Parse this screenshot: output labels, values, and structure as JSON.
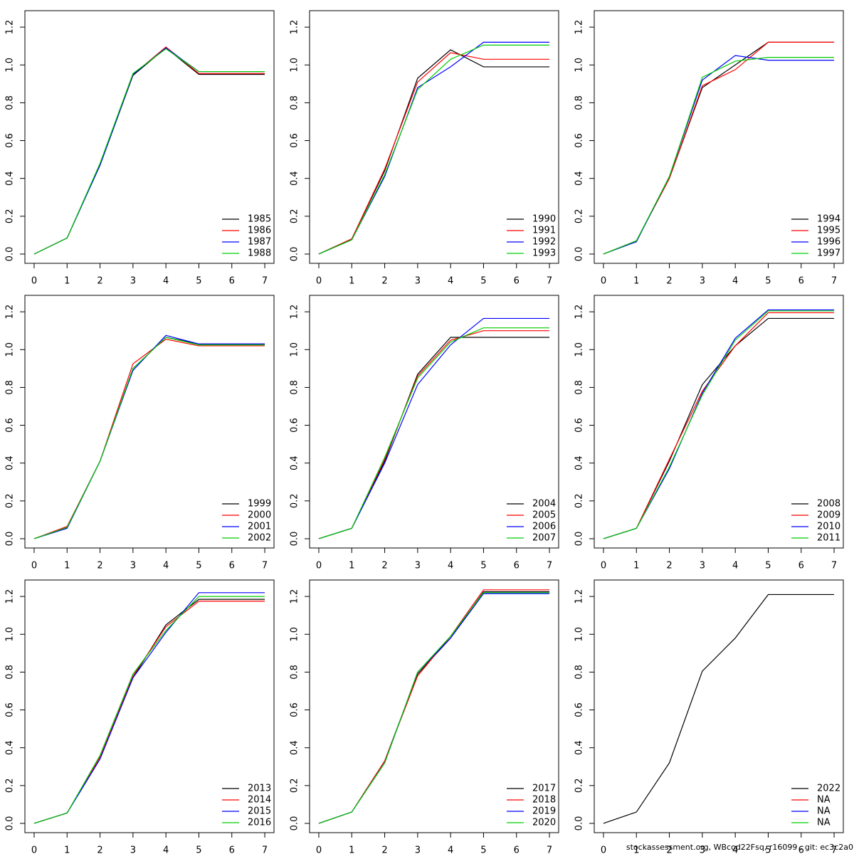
{
  "chart_data": [
    {
      "type": "line",
      "x": [
        0,
        1,
        2,
        3,
        4,
        5,
        6,
        7
      ],
      "xlim": [
        -0.28,
        7.28
      ],
      "xticks": [
        0,
        1,
        2,
        3,
        4,
        5,
        6,
        7
      ],
      "ylim": [
        -0.049,
        1.287
      ],
      "yticks": [
        {
          "value": 0,
          "label": "0.0"
        },
        0.2,
        0.4,
        0.6,
        0.8,
        {
          "value": 1,
          "label": "1.0"
        },
        1.2
      ],
      "legend": "bottomright",
      "series": [
        {
          "name": "1985",
          "color": "#000000",
          "values": [
            0,
            0.085,
            0.47,
            0.945,
            1.09,
            0.95,
            0.95,
            0.95
          ]
        },
        {
          "name": "1986",
          "color": "#ff0000",
          "values": [
            0,
            0.085,
            0.475,
            0.95,
            1.095,
            0.955,
            0.955,
            0.955
          ]
        },
        {
          "name": "1987",
          "color": "#0000ff",
          "values": [
            0,
            0.085,
            0.47,
            0.95,
            1.09,
            0.965,
            0.965,
            0.965
          ]
        },
        {
          "name": "1988",
          "color": "#00cd00",
          "values": [
            0,
            0.085,
            0.48,
            0.955,
            1.085,
            0.965,
            0.965,
            0.965
          ]
        }
      ]
    },
    {
      "type": "line",
      "x": [
        0,
        1,
        2,
        3,
        4,
        5,
        6,
        7
      ],
      "xlim": [
        -0.28,
        7.28
      ],
      "xticks": [
        0,
        1,
        2,
        3,
        4,
        5,
        6,
        7
      ],
      "ylim": [
        -0.049,
        1.287
      ],
      "yticks": [
        {
          "value": 0,
          "label": "0.0"
        },
        0.2,
        0.4,
        0.6,
        0.8,
        {
          "value": 1,
          "label": "1.0"
        },
        1.2
      ],
      "legend": "bottomright",
      "series": [
        {
          "name": "1990",
          "color": "#000000",
          "values": [
            0,
            0.08,
            0.44,
            0.93,
            1.08,
            0.99,
            0.99,
            0.99
          ]
        },
        {
          "name": "1991",
          "color": "#ff0000",
          "values": [
            0,
            0.08,
            0.45,
            0.91,
            1.065,
            1.03,
            1.03,
            1.03
          ]
        },
        {
          "name": "1992",
          "color": "#0000ff",
          "values": [
            0,
            0.075,
            0.41,
            0.88,
            0.99,
            1.12,
            1.12,
            1.12
          ]
        },
        {
          "name": "1993",
          "color": "#00cd00",
          "values": [
            0,
            0.075,
            0.42,
            0.87,
            1.03,
            1.105,
            1.105,
            1.105
          ]
        }
      ]
    },
    {
      "type": "line",
      "x": [
        0,
        1,
        2,
        3,
        4,
        5,
        6,
        7
      ],
      "xlim": [
        -0.28,
        7.28
      ],
      "xticks": [
        0,
        1,
        2,
        3,
        4,
        5,
        6,
        7
      ],
      "ylim": [
        -0.049,
        1.287
      ],
      "yticks": [
        {
          "value": 0,
          "label": "0.0"
        },
        0.2,
        0.4,
        0.6,
        0.8,
        {
          "value": 1,
          "label": "1.0"
        },
        1.2
      ],
      "legend": "bottomright",
      "series": [
        {
          "name": "1994",
          "color": "#000000",
          "values": [
            0,
            0.07,
            0.4,
            0.88,
            1.0,
            1.12,
            1.12,
            1.12
          ]
        },
        {
          "name": "1995",
          "color": "#ff0000",
          "values": [
            0,
            0.07,
            0.4,
            0.89,
            0.975,
            1.12,
            1.12,
            1.12
          ]
        },
        {
          "name": "1996",
          "color": "#0000ff",
          "values": [
            0,
            0.065,
            0.41,
            0.92,
            1.05,
            1.025,
            1.025,
            1.025
          ]
        },
        {
          "name": "1997",
          "color": "#00cd00",
          "values": [
            0,
            0.07,
            0.41,
            0.935,
            1.02,
            1.04,
            1.04,
            1.04
          ]
        }
      ]
    },
    {
      "type": "line",
      "x": [
        0,
        1,
        2,
        3,
        4,
        5,
        6,
        7
      ],
      "xlim": [
        -0.28,
        7.28
      ],
      "xticks": [
        0,
        1,
        2,
        3,
        4,
        5,
        6,
        7
      ],
      "ylim": [
        -0.049,
        1.287
      ],
      "yticks": [
        {
          "value": 0,
          "label": "0.0"
        },
        0.2,
        0.4,
        0.6,
        0.8,
        {
          "value": 1,
          "label": "1.0"
        },
        1.2
      ],
      "legend": "bottomright",
      "series": [
        {
          "name": "1999",
          "color": "#000000",
          "values": [
            0,
            0.06,
            0.41,
            0.9,
            1.065,
            1.03,
            1.03,
            1.03
          ]
        },
        {
          "name": "2000",
          "color": "#ff0000",
          "values": [
            0,
            0.065,
            0.41,
            0.925,
            1.055,
            1.02,
            1.02,
            1.02
          ]
        },
        {
          "name": "2001",
          "color": "#0000ff",
          "values": [
            0,
            0.055,
            0.41,
            0.89,
            1.075,
            1.03,
            1.03,
            1.03
          ]
        },
        {
          "name": "2002",
          "color": "#00cd00",
          "values": [
            0,
            0.06,
            0.41,
            0.9,
            1.065,
            1.025,
            1.025,
            1.025
          ]
        }
      ]
    },
    {
      "type": "line",
      "x": [
        0,
        1,
        2,
        3,
        4,
        5,
        6,
        7
      ],
      "xlim": [
        -0.28,
        7.28
      ],
      "xticks": [
        0,
        1,
        2,
        3,
        4,
        5,
        6,
        7
      ],
      "ylim": [
        -0.049,
        1.287
      ],
      "yticks": [
        {
          "value": 0,
          "label": "0.0"
        },
        0.2,
        0.4,
        0.6,
        0.8,
        {
          "value": 1,
          "label": "1.0"
        },
        1.2
      ],
      "legend": "bottomright",
      "series": [
        {
          "name": "2004",
          "color": "#000000",
          "values": [
            0,
            0.055,
            0.41,
            0.87,
            1.065,
            1.065,
            1.065,
            1.065
          ]
        },
        {
          "name": "2005",
          "color": "#ff0000",
          "values": [
            0,
            0.055,
            0.42,
            0.86,
            1.05,
            1.1,
            1.1,
            1.1
          ]
        },
        {
          "name": "2006",
          "color": "#0000ff",
          "values": [
            0,
            0.055,
            0.4,
            0.815,
            1.025,
            1.165,
            1.165,
            1.165
          ]
        },
        {
          "name": "2007",
          "color": "#00cd00",
          "values": [
            0,
            0.055,
            0.43,
            0.85,
            1.04,
            1.115,
            1.115,
            1.115
          ]
        }
      ]
    },
    {
      "type": "line",
      "x": [
        0,
        1,
        2,
        3,
        4,
        5,
        6,
        7
      ],
      "xlim": [
        -0.28,
        7.28
      ],
      "xticks": [
        0,
        1,
        2,
        3,
        4,
        5,
        6,
        7
      ],
      "ylim": [
        -0.049,
        1.287
      ],
      "yticks": [
        {
          "value": 0,
          "label": "0.0"
        },
        0.2,
        0.4,
        0.6,
        0.8,
        {
          "value": 1,
          "label": "1.0"
        },
        1.2
      ],
      "legend": "bottomright",
      "series": [
        {
          "name": "2008",
          "color": "#000000",
          "values": [
            0,
            0.055,
            0.41,
            0.815,
            1.02,
            1.165,
            1.165,
            1.165
          ]
        },
        {
          "name": "2009",
          "color": "#ff0000",
          "values": [
            0,
            0.055,
            0.42,
            0.78,
            1.02,
            1.195,
            1.195,
            1.195
          ]
        },
        {
          "name": "2010",
          "color": "#0000ff",
          "values": [
            0,
            0.055,
            0.37,
            0.77,
            1.06,
            1.21,
            1.21,
            1.21
          ]
        },
        {
          "name": "2011",
          "color": "#00cd00",
          "values": [
            0,
            0.055,
            0.38,
            0.76,
            1.05,
            1.205,
            1.205,
            1.205
          ]
        }
      ]
    },
    {
      "type": "line",
      "x": [
        0,
        1,
        2,
        3,
        4,
        5,
        6,
        7
      ],
      "xlim": [
        -0.28,
        7.28
      ],
      "xticks": [
        0,
        1,
        2,
        3,
        4,
        5,
        6,
        7
      ],
      "ylim": [
        -0.049,
        1.287
      ],
      "yticks": [
        {
          "value": 0,
          "label": "0.0"
        },
        0.2,
        0.4,
        0.6,
        0.8,
        {
          "value": 1,
          "label": "1.0"
        },
        1.2
      ],
      "legend": "bottomright",
      "series": [
        {
          "name": "2013",
          "color": "#000000",
          "values": [
            0,
            0.055,
            0.35,
            0.77,
            1.05,
            1.185,
            1.185,
            1.185
          ]
        },
        {
          "name": "2014",
          "color": "#ff0000",
          "values": [
            0,
            0.055,
            0.35,
            0.78,
            1.04,
            1.175,
            1.175,
            1.175
          ]
        },
        {
          "name": "2015",
          "color": "#0000ff",
          "values": [
            0,
            0.055,
            0.34,
            0.77,
            1.01,
            1.22,
            1.22,
            1.22
          ]
        },
        {
          "name": "2016",
          "color": "#00cd00",
          "values": [
            0,
            0.055,
            0.36,
            0.79,
            1.02,
            1.2,
            1.2,
            1.2
          ]
        }
      ]
    },
    {
      "type": "line",
      "x": [
        0,
        1,
        2,
        3,
        4,
        5,
        6,
        7
      ],
      "xlim": [
        -0.28,
        7.28
      ],
      "xticks": [
        0,
        1,
        2,
        3,
        4,
        5,
        6,
        7
      ],
      "ylim": [
        -0.049,
        1.287
      ],
      "yticks": [
        {
          "value": 0,
          "label": "0.0"
        },
        0.2,
        0.4,
        0.6,
        0.8,
        {
          "value": 1,
          "label": "1.0"
        },
        1.2
      ],
      "legend": "bottomright",
      "series": [
        {
          "name": "2017",
          "color": "#000000",
          "values": [
            0,
            0.06,
            0.33,
            0.79,
            0.98,
            1.225,
            1.225,
            1.225
          ]
        },
        {
          "name": "2018",
          "color": "#ff0000",
          "values": [
            0,
            0.06,
            0.33,
            0.78,
            0.99,
            1.235,
            1.235,
            1.235
          ]
        },
        {
          "name": "2019",
          "color": "#0000ff",
          "values": [
            0,
            0.06,
            0.32,
            0.8,
            0.98,
            1.215,
            1.215,
            1.215
          ]
        },
        {
          "name": "2020",
          "color": "#00cd00",
          "values": [
            0,
            0.06,
            0.32,
            0.8,
            0.99,
            1.22,
            1.22,
            1.22
          ]
        }
      ]
    },
    {
      "type": "line",
      "x": [
        0,
        1,
        2,
        3,
        4,
        5,
        6,
        7
      ],
      "xlim": [
        -0.28,
        7.28
      ],
      "xticks": [
        0,
        1,
        2,
        3,
        4,
        5,
        6,
        7
      ],
      "ylim": [
        -0.049,
        1.287
      ],
      "yticks": [
        {
          "value": 0,
          "label": "0.0"
        },
        0.2,
        0.4,
        0.6,
        0.8,
        {
          "value": 1,
          "label": "1.0"
        },
        1.2
      ],
      "legend": "bottomright",
      "series": [
        {
          "name": "2022",
          "color": "#000000",
          "values": [
            0,
            0.06,
            0.32,
            0.805,
            0.98,
            1.21,
            1.21,
            1.21
          ]
        },
        {
          "name": "NA",
          "color": "#ff0000",
          "values": [
            null,
            null,
            null,
            null,
            null,
            null,
            null,
            null
          ]
        },
        {
          "name": "NA",
          "color": "#0000ff",
          "values": [
            null,
            null,
            null,
            null,
            null,
            null,
            null,
            null
          ]
        },
        {
          "name": "NA",
          "color": "#00cd00",
          "values": [
            null,
            null,
            null,
            null,
            null,
            null,
            null,
            null
          ]
        }
      ]
    }
  ],
  "footer": "stockassessment.org, WBcod22Fsq, r16099 , git: ec3c2a0"
}
